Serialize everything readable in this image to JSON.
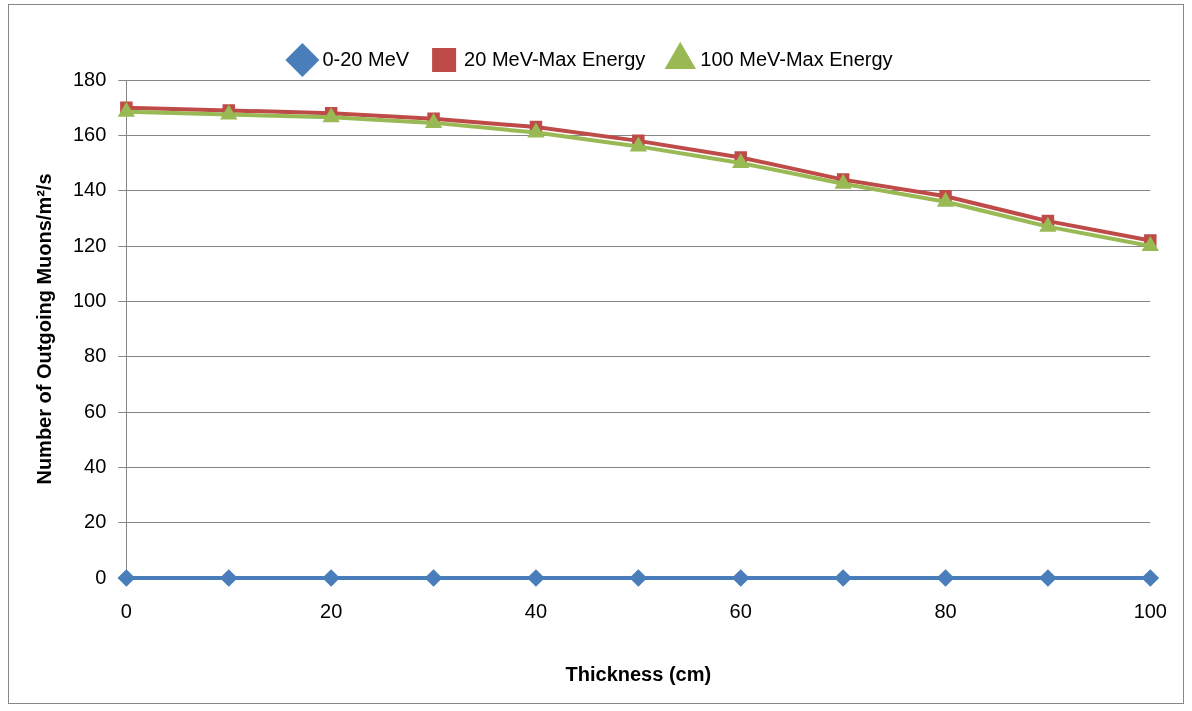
{
  "chart_data": {
    "type": "line",
    "xlabel": "Thickness (cm)",
    "ylabel": "Number of Outgoing Muons/m²/s",
    "x": [
      0,
      10,
      20,
      30,
      40,
      50,
      60,
      70,
      80,
      90,
      100
    ],
    "series": [
      {
        "name": "0-20 MeV",
        "color": "#4a7ebb",
        "marker": "diamond",
        "values": [
          0,
          0,
          0,
          0,
          0,
          0,
          0,
          0,
          0,
          0,
          0
        ]
      },
      {
        "name": "20 MeV-Max Energy",
        "color": "#be4b48",
        "marker": "square",
        "values": [
          170,
          169,
          168,
          166,
          163,
          158,
          152,
          144,
          138,
          129,
          122
        ]
      },
      {
        "name": "100 MeV-Max Energy",
        "color": "#98b954",
        "marker": "triangle",
        "values": [
          168.5,
          167.5,
          166.5,
          164.5,
          161,
          156,
          150,
          142.5,
          136,
          127,
          120
        ]
      }
    ],
    "xlim": [
      0,
      100
    ],
    "xticks": [
      0,
      20,
      40,
      60,
      80,
      100
    ],
    "ylim": [
      0,
      180
    ],
    "yticks": [
      0,
      20,
      40,
      60,
      80,
      100,
      120,
      140,
      160,
      180
    ],
    "grid": "y",
    "legend": "top",
    "line_style": "solid"
  }
}
